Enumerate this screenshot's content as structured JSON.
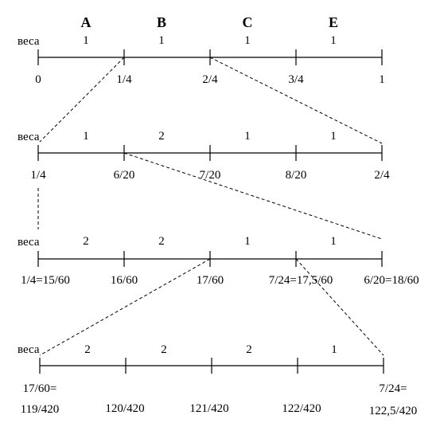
{
  "headers": [
    "A",
    "B",
    "C",
    "E"
  ],
  "rows": [
    {
      "weights_label": "веса",
      "weights": [
        "1",
        "1",
        "1",
        "1"
      ],
      "ticks": [
        "0",
        "1/4",
        "2/4",
        "3/4",
        "1"
      ]
    },
    {
      "weights_label": "веса",
      "weights": [
        "1",
        "2",
        "1",
        "1"
      ],
      "ticks": [
        "1/4",
        "6/20",
        "7/20",
        "8/20",
        "2/4"
      ]
    },
    {
      "weights_label": "веса",
      "weights": [
        "2",
        "2",
        "1",
        "1"
      ],
      "ticks": [
        "1/4=15/60",
        "16/60",
        "17/60",
        "7/24=17,5/60",
        "6/20=18/60"
      ]
    },
    {
      "weights_label": "веса",
      "weights": [
        "2",
        "2",
        "2",
        "1"
      ],
      "ticks": [
        "17/60=",
        "120/420",
        "121/420",
        "122/420",
        "7/24="
      ],
      "ticks_second_line": [
        "119/420",
        "",
        "",
        "",
        "122,5/420"
      ]
    }
  ]
}
